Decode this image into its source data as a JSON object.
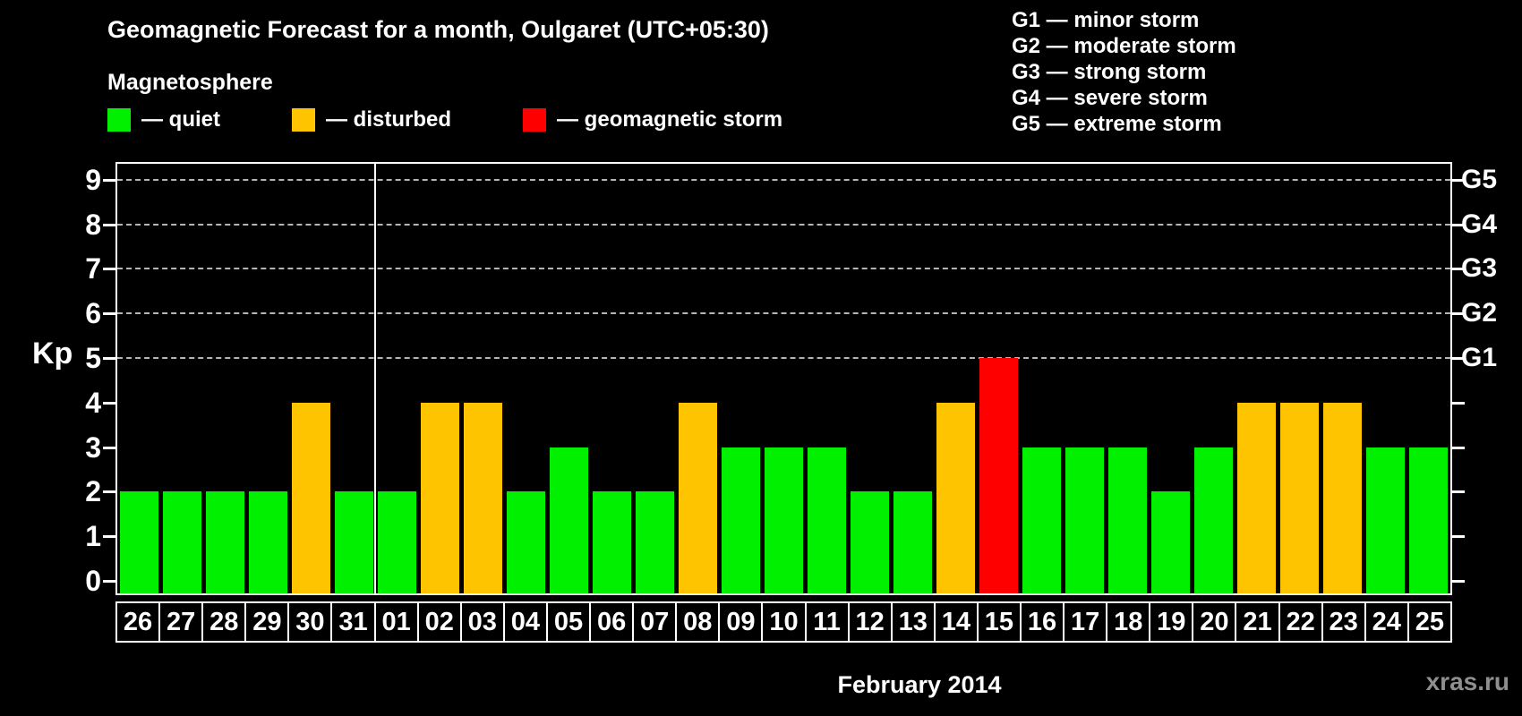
{
  "header": {
    "title": "Geomagnetic Forecast for a month, Oulgaret (UTC+05:30)",
    "subtitle": "Magnetosphere"
  },
  "colors": {
    "quiet": "#00f000",
    "disturbed": "#ffc400",
    "storm": "#ff0000",
    "background": "#000000",
    "axis": "#ffffff",
    "gridline": "#b5b5b5"
  },
  "legend": {
    "items": [
      {
        "key": "quiet",
        "label": "— quiet"
      },
      {
        "key": "disturbed",
        "label": "— disturbed"
      },
      {
        "key": "storm",
        "label": "— geomagnetic storm"
      }
    ]
  },
  "storm_scale_legend": {
    "items": [
      "G1 — minor storm",
      "G2 — moderate storm",
      "G3 — strong storm",
      "G4 — severe storm",
      "G5 — extreme storm"
    ]
  },
  "chart_data": {
    "type": "bar",
    "title": "Geomagnetic Forecast for a month, Oulgaret (UTC+05:30)",
    "xlabel": "February 2014",
    "ylabel": "Kp",
    "ylim": [
      0,
      9
    ],
    "grid": "dashed horizontal at Kp 5-9",
    "legend_position": "top",
    "categories": [
      "26",
      "27",
      "28",
      "29",
      "30",
      "31",
      "01",
      "02",
      "03",
      "04",
      "05",
      "06",
      "07",
      "08",
      "09",
      "10",
      "11",
      "12",
      "13",
      "14",
      "15",
      "16",
      "17",
      "18",
      "19",
      "20",
      "21",
      "22",
      "23",
      "24",
      "25"
    ],
    "values": [
      2,
      2,
      2,
      2,
      4,
      2,
      2,
      4,
      4,
      2,
      3,
      2,
      2,
      4,
      3,
      3,
      3,
      2,
      2,
      4,
      5,
      3,
      3,
      3,
      2,
      3,
      4,
      4,
      4,
      3,
      3
    ],
    "statuses": [
      "quiet",
      "quiet",
      "quiet",
      "quiet",
      "disturbed",
      "quiet",
      "quiet",
      "disturbed",
      "disturbed",
      "quiet",
      "quiet",
      "quiet",
      "quiet",
      "disturbed",
      "quiet",
      "quiet",
      "quiet",
      "quiet",
      "quiet",
      "disturbed",
      "storm",
      "quiet",
      "quiet",
      "quiet",
      "quiet",
      "quiet",
      "disturbed",
      "disturbed",
      "disturbed",
      "quiet",
      "quiet"
    ],
    "month_separator_after_index": 5,
    "left_tick_labels": [
      "0",
      "1",
      "2",
      "3",
      "4",
      "5",
      "6",
      "7",
      "8",
      "9"
    ],
    "right_axis_labels": [
      {
        "label": "G1",
        "kp": 5
      },
      {
        "label": "G2",
        "kp": 6
      },
      {
        "label": "G3",
        "kp": 7
      },
      {
        "label": "G4",
        "kp": 8
      },
      {
        "label": "G5",
        "kp": 9
      }
    ],
    "gridlines_kp": [
      5,
      6,
      7,
      8,
      9
    ]
  },
  "footer": {
    "xlabel": "February 2014",
    "watermark": "xras.ru"
  }
}
